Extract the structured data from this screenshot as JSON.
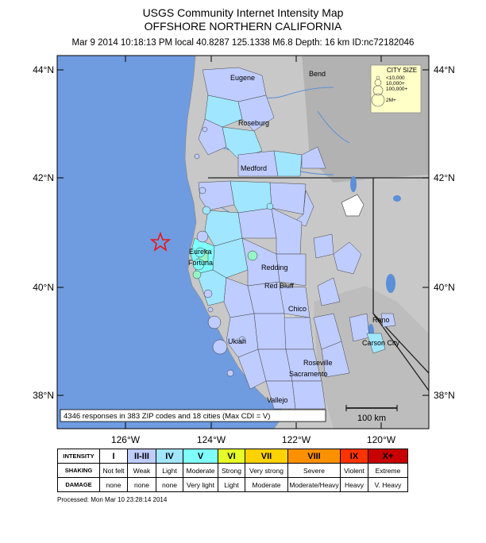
{
  "header": {
    "title": "USGS Community Internet Intensity Map",
    "region": "OFFSHORE NORTHERN CALIFORNIA",
    "event_line": "Mar 9 2014 10:18:13 PM local 40.8287 125.1338 M6.8 Depth: 16 km ID:nc72182046"
  },
  "map": {
    "lat_labels_left": [
      "44°N",
      "42°N",
      "40°N",
      "38°N"
    ],
    "lat_labels_right": [
      "44°N",
      "42°N",
      "40°N",
      "38°N"
    ],
    "lon_labels": [
      "126°W",
      "124°W",
      "122°W",
      "120°W"
    ],
    "cities": [
      "Eugene",
      "Bend",
      "Roseburg",
      "Medford",
      "Eureka",
      "Fortuna",
      "Redding",
      "Red Bluff",
      "Chico",
      "Reno",
      "Carson City",
      "Ukiah",
      "Roseville",
      "Sacramento",
      "Vallejo"
    ],
    "summary": "4346 responses in 383 ZIP codes and 18 cities (Max CDI = V)",
    "scale_label": "100 km",
    "epicenter_marker": "red-star-icon",
    "ocean_color": "#6f9be0",
    "land_color": "#c8c8c8"
  },
  "city_size_legend": {
    "title": "CITY SIZE",
    "entries": [
      "<10,000",
      "10,000+",
      "100,000+",
      "2M+"
    ]
  },
  "intensity_scale": {
    "row_labels": [
      "INTENSITY",
      "SHAKING",
      "DAMAGE"
    ],
    "columns": [
      {
        "intensity": "I",
        "shaking": "Not felt",
        "damage": "none",
        "color": "#ffffff"
      },
      {
        "intensity": "II-III",
        "shaking": "Weak",
        "damage": "none",
        "color": "#bfccff"
      },
      {
        "intensity": "IV",
        "shaking": "Light",
        "damage": "none",
        "color": "#a0e6ff"
      },
      {
        "intensity": "V",
        "shaking": "Moderate",
        "damage": "Very light",
        "color": "#80ffff"
      },
      {
        "intensity": "VI",
        "shaking": "Strong",
        "damage": "Light",
        "color": "#e6ff26"
      },
      {
        "intensity": "VII",
        "shaking": "Very strong",
        "damage": "Moderate",
        "color": "#ffd200"
      },
      {
        "intensity": "VIII",
        "shaking": "Severe",
        "damage": "Moderate/Heavy",
        "color": "#ff9100"
      },
      {
        "intensity": "IX",
        "shaking": "Violent",
        "damage": "Heavy",
        "color": "#ff3300"
      },
      {
        "intensity": "X+",
        "shaking": "Extreme",
        "damage": "V. Heavy",
        "color": "#c80000"
      }
    ]
  },
  "footer": {
    "processed": "Processed: Mon Mar 10 23:28:14 2014"
  }
}
